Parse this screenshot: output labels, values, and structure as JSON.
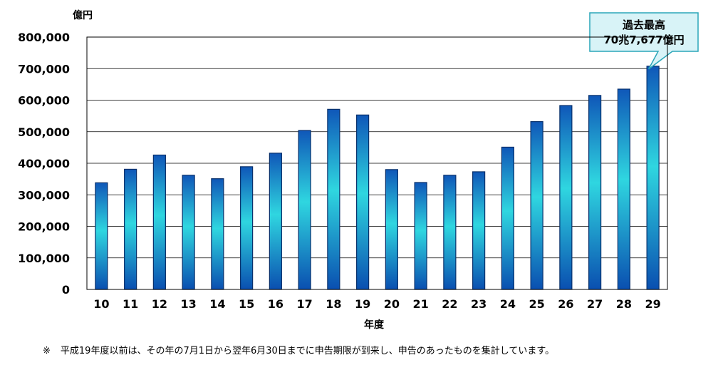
{
  "chart_data": {
    "type": "bar",
    "unit_label": "億円",
    "xlabel": "年度",
    "categories": [
      "10",
      "11",
      "12",
      "13",
      "14",
      "15",
      "16",
      "17",
      "18",
      "19",
      "20",
      "21",
      "22",
      "23",
      "24",
      "25",
      "26",
      "27",
      "28",
      "29"
    ],
    "values": [
      338000,
      381000,
      426000,
      362000,
      351000,
      389000,
      432000,
      504000,
      571000,
      553000,
      380000,
      339000,
      362000,
      373000,
      451000,
      532000,
      583000,
      615000,
      635000,
      707677
    ],
    "y_ticks": [
      "0",
      "100,000",
      "200,000",
      "300,000",
      "400,000",
      "500,000",
      "600,000",
      "700,000",
      "800,000"
    ],
    "ylim": [
      0,
      800000
    ],
    "grid": true,
    "callout": {
      "line1": "過去最高",
      "line2": "70兆7,677億円",
      "category": "29"
    },
    "colors": {
      "bar_dark": "#0f57b8",
      "bar_mid": "#2fd6e0",
      "callout_fill": "#d8f3f7",
      "callout_border": "#2aa6b8"
    }
  },
  "footnote": {
    "mark": "※",
    "text": "平成19年度以前は、その年の7月1日から翌年6月30日までに申告期限が到来し、申告のあったものを集計しています。"
  }
}
